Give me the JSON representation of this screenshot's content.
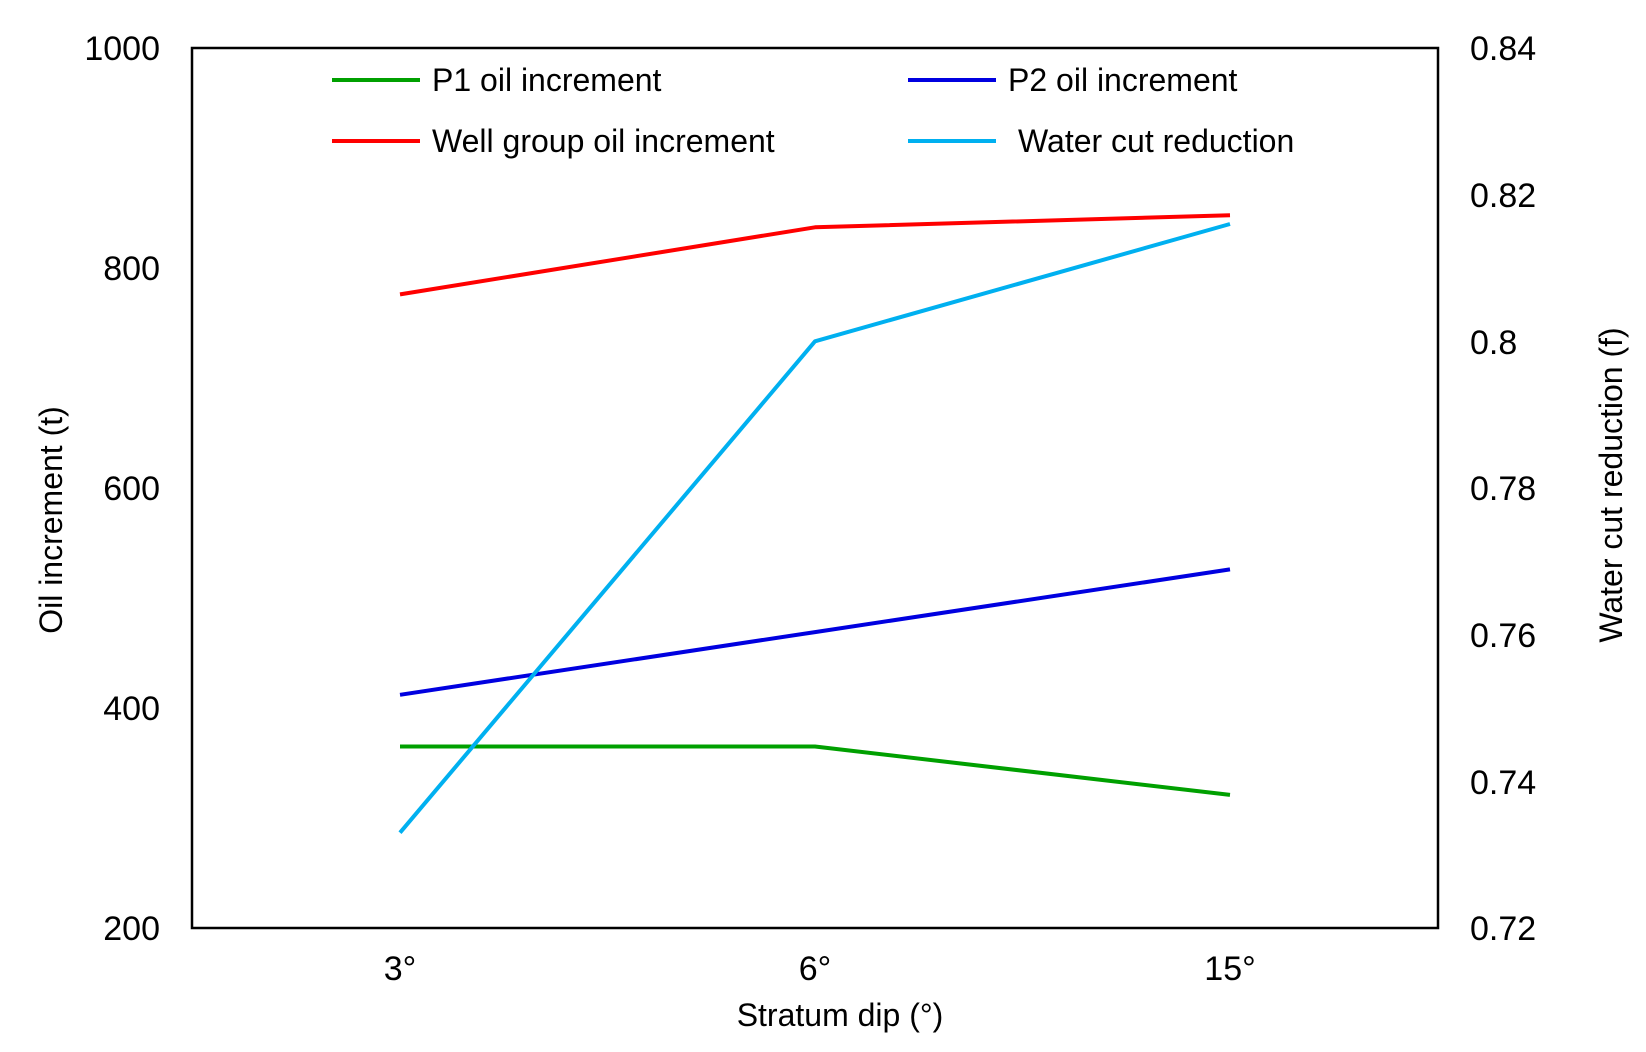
{
  "chart_data": {
    "type": "line",
    "title": "",
    "categories": [
      "3°",
      "6°",
      "15°"
    ],
    "xlabel": "Stratum dip (°)",
    "ylabel": "Oil increment (t)",
    "y2label": "Water cut reduction (f)",
    "ylim": [
      200,
      1000
    ],
    "yticks": [
      "200",
      "400",
      "600",
      "800",
      "1000"
    ],
    "y2lim": [
      0.72,
      0.84
    ],
    "y2ticks": [
      "0.72",
      "0.74",
      "0.76",
      "0.78",
      "0.8",
      "0.82",
      "0.84"
    ],
    "grid": false,
    "legend_position": "top",
    "series": [
      {
        "name": "P1 oil increment",
        "axis": "left",
        "color": "#00a000",
        "values": [
          365,
          365,
          321
        ]
      },
      {
        "name": "P2 oil increment",
        "axis": "left",
        "color": "#0000e0",
        "values": [
          412,
          469,
          526
        ]
      },
      {
        "name": "Well group oil increment",
        "axis": "left",
        "color": "#ff0000",
        "values": [
          776,
          837,
          848
        ]
      },
      {
        "name": "Water cut reduction",
        "axis": "right",
        "color": "#00b0f0",
        "values": [
          0.733,
          0.8,
          0.816
        ]
      }
    ]
  }
}
